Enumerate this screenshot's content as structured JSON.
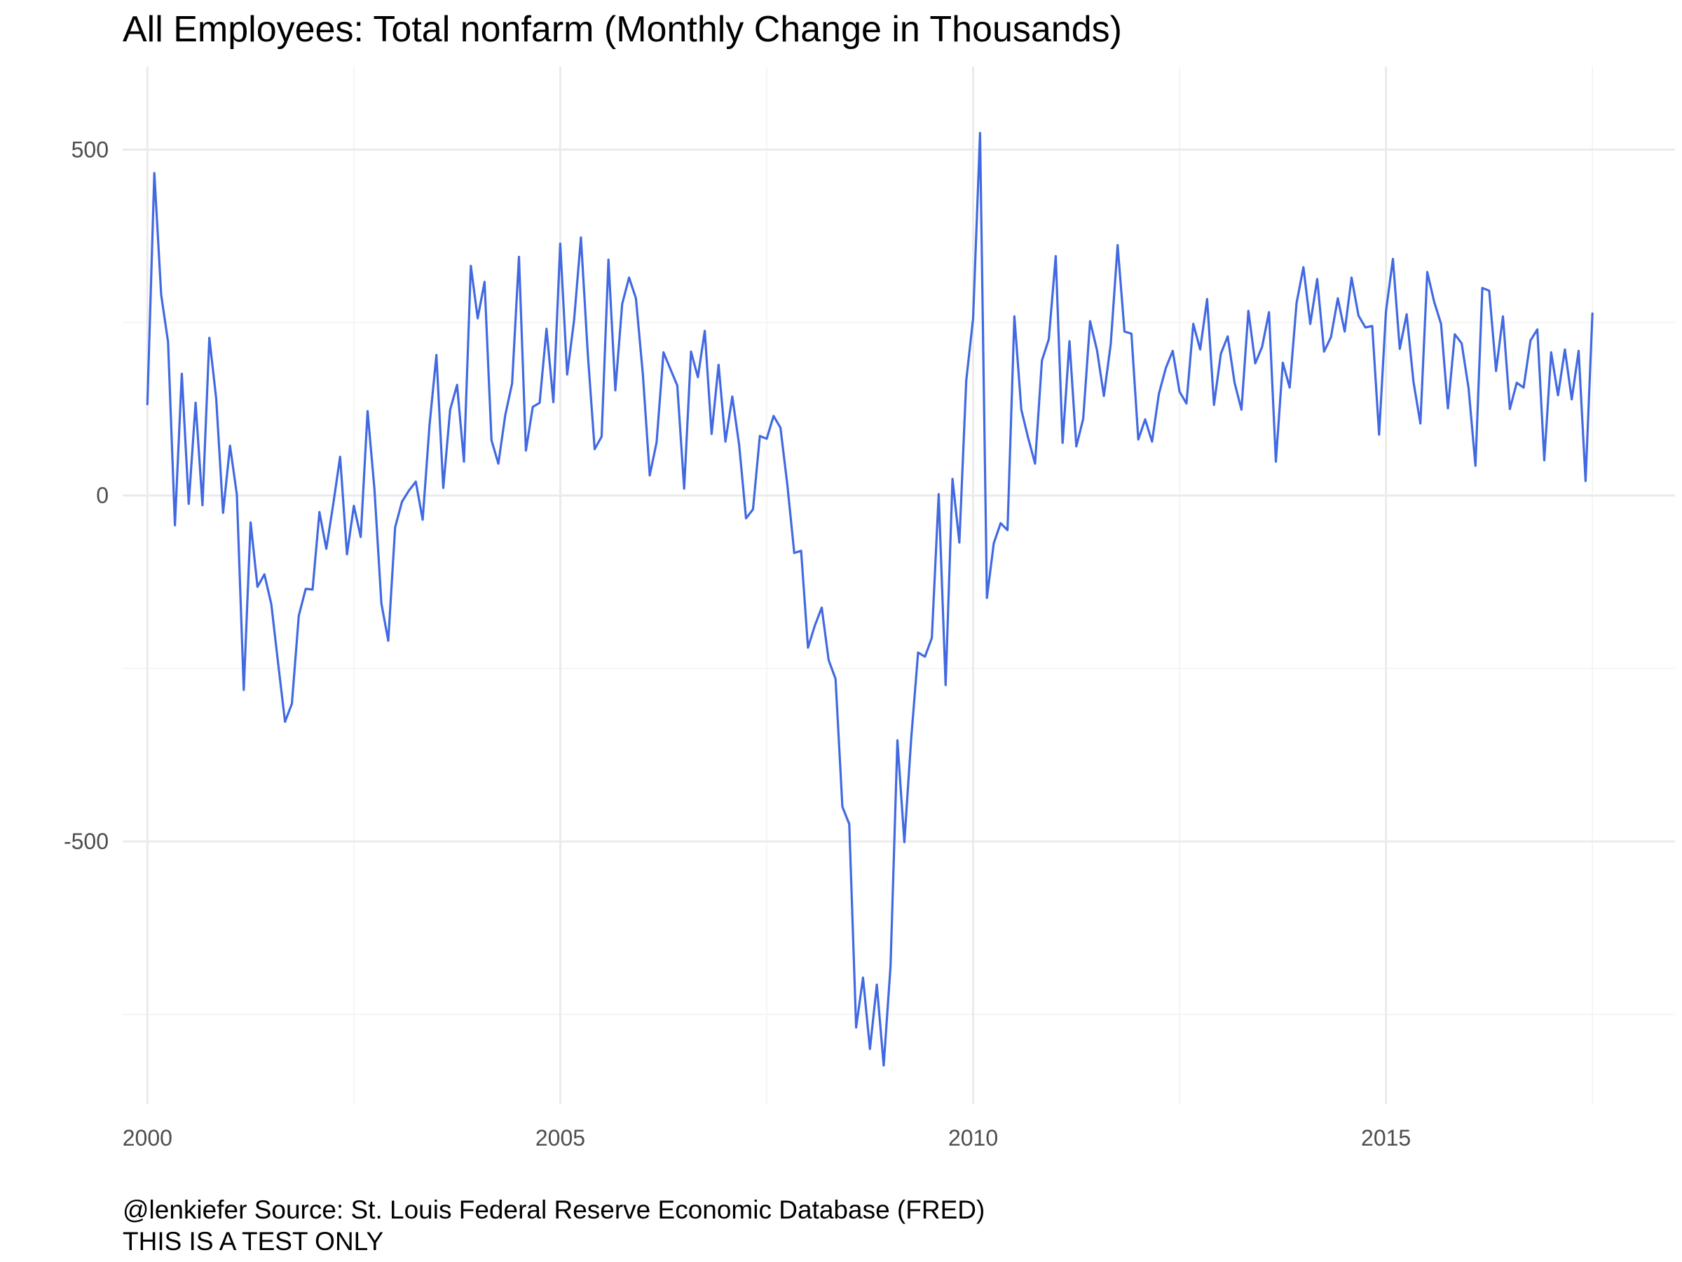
{
  "chart_data": {
    "type": "line",
    "title": "All Employees: Total nonfarm (Monthly Change in Thousands)",
    "caption": [
      "@lenkiefer Source: St. Louis Federal Reserve Economic Database (FRED)",
      "THIS IS A TEST ONLY"
    ],
    "xlabel": "",
    "ylabel": "",
    "xlim": [
      1999.7,
      2018.5
    ],
    "ylim": [
      -880,
      620
    ],
    "x_ticks": [
      {
        "value": 2000,
        "label": "2000"
      },
      {
        "value": 2005,
        "label": "2005"
      },
      {
        "value": 2010,
        "label": "2010"
      },
      {
        "value": 2015,
        "label": "2015"
      }
    ],
    "y_ticks": [
      {
        "value": 500,
        "label": "500"
      },
      {
        "value": 0,
        "label": "0"
      },
      {
        "value": -500,
        "label": "-500"
      }
    ],
    "grid": true,
    "legend": "none",
    "colors": {
      "line": "#4169E1",
      "grid_major": "#ebebeb",
      "grid_minor": "#f2f2f2",
      "tick_text": "#4d4d4d"
    },
    "series": [
      {
        "start": "2000-01",
        "frequency": "monthly",
        "values": [
          132,
          466,
          290,
          222,
          -43,
          176,
          -12,
          134,
          -14,
          228,
          140,
          -25,
          72,
          1,
          -281,
          -39,
          -132,
          -114,
          -157,
          -243,
          -327,
          -301,
          -174,
          -135,
          -136,
          -24,
          -77,
          -13,
          56,
          -85,
          -15,
          -60,
          122,
          9,
          -156,
          -210,
          -46,
          -9,
          7,
          20,
          -35,
          102,
          203,
          11,
          124,
          160,
          49,
          332,
          256,
          309,
          80,
          46,
          116,
          162,
          345,
          65,
          128,
          134,
          241,
          135,
          364,
          175,
          253,
          373,
          205,
          67,
          85,
          341,
          152,
          277,
          315,
          285,
          175,
          29,
          77,
          207,
          183,
          159,
          10,
          208,
          171,
          238,
          89,
          189,
          78,
          143,
          73,
          -33,
          -20,
          86,
          82,
          115,
          98,
          16,
          -83,
          -80,
          -220,
          -188,
          -162,
          -238,
          -265,
          -450,
          -475,
          -769,
          -697,
          -800,
          -707,
          -824,
          -680,
          -354,
          -501,
          -351,
          -227,
          -233,
          -206,
          2,
          -274,
          24,
          -68,
          166,
          256,
          524,
          -148,
          -69,
          -40,
          -50,
          259,
          124,
          83,
          46,
          195,
          226,
          346,
          76,
          223,
          71,
          111,
          252,
          210,
          144,
          219,
          362,
          237,
          234,
          81,
          110,
          78,
          147,
          184,
          209,
          150,
          133,
          248,
          211,
          284,
          131,
          205,
          230,
          163,
          124,
          267,
          191,
          215,
          265,
          49,
          192,
          156,
          278,
          330,
          248,
          313,
          208,
          229,
          285,
          237,
          315,
          260,
          243,
          245,
          88,
          266,
          342,
          212,
          262,
          164,
          104,
          323,
          280,
          248,
          126,
          233,
          220,
          155,
          43,
          300,
          296,
          180,
          259,
          125,
          163,
          156,
          224,
          240,
          51,
          207,
          145,
          211,
          139,
          209,
          21,
          263
        ]
      }
    ]
  }
}
